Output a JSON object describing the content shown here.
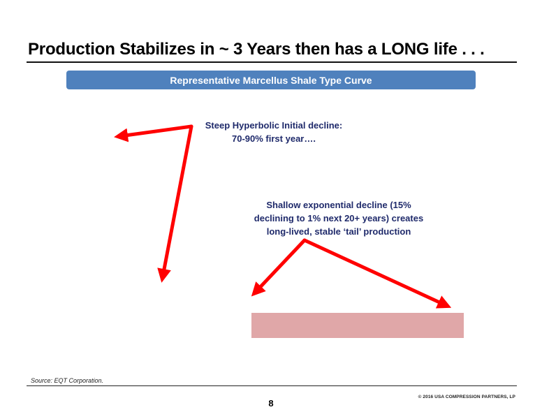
{
  "slide": {
    "title": "Production Stabilizes in ~ 3 Years then has a LONG life . . .",
    "banner": "Representative Marcellus Shale Type Curve",
    "callout_initial": {
      "line1": "Steep Hyperbolic Initial decline:",
      "line2": "70-90% first year…."
    },
    "callout_tail": {
      "line1": "Shallow exponential decline (15%",
      "line2": "declining to 1% next 20+ years) creates",
      "line3": "long-lived, stable ‘tail’ production"
    },
    "source": "Source: EQT Corporation.",
    "copyright": "© 2016 USA COMPRESSION PARTNERS, LP",
    "page_number": "8"
  },
  "colors": {
    "banner": "#4f81bd",
    "callout_text": "#1f2a6b",
    "arrow": "#ff0000",
    "tail_box": "#e0a7a8"
  },
  "icons": [
    "arrow-up-left",
    "arrow-down",
    "arrow-down-left",
    "arrow-down-right"
  ]
}
